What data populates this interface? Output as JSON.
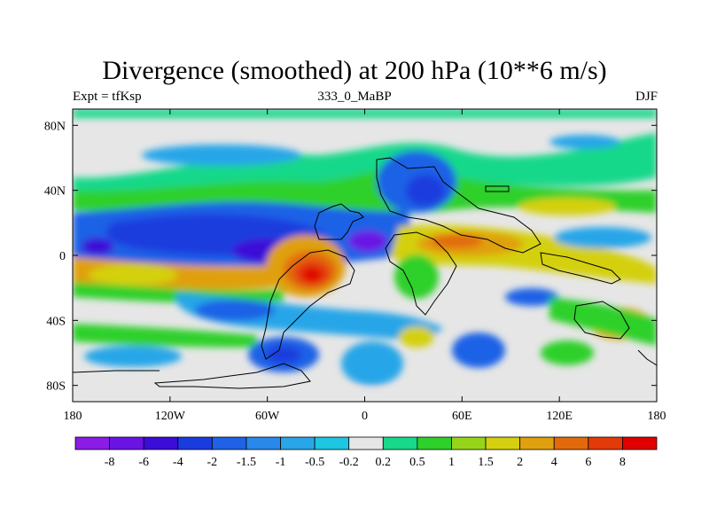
{
  "title": "Divergence (smoothed) at 200 hPa (10**6 m/s)",
  "subtitle_left": "Expt = tfKsp",
  "subtitle_center": "333_0_MaBP",
  "subtitle_right": "DJF",
  "chart_data": {
    "type": "heatmap",
    "variable": "Divergence (smoothed) at 200 hPa",
    "units": "10**6 m/s",
    "season": "DJF",
    "experiment": "tfKsp",
    "period": "333_0_MaBP",
    "x_range": [
      -180,
      180
    ],
    "y_range": [
      -90,
      90
    ],
    "x_ticks": [
      {
        "value": -180,
        "label": "180"
      },
      {
        "value": -120,
        "label": "120W"
      },
      {
        "value": -60,
        "label": "60W"
      },
      {
        "value": 0,
        "label": "0"
      },
      {
        "value": 60,
        "label": "60E"
      },
      {
        "value": 120,
        "label": "120E"
      },
      {
        "value": 180,
        "label": "180"
      }
    ],
    "y_ticks": [
      {
        "value": 80,
        "label": "80N"
      },
      {
        "value": 40,
        "label": "40N"
      },
      {
        "value": 0,
        "label": "0"
      },
      {
        "value": -40,
        "label": "40S"
      },
      {
        "value": -80,
        "label": "80S"
      }
    ],
    "colorbar_labels": [
      "-8",
      "-6",
      "-4",
      "-2",
      "-1.5",
      "-1",
      "-0.5",
      "-0.2",
      "0.2",
      "0.5",
      "1",
      "1.5",
      "2",
      "4",
      "6",
      "8"
    ],
    "colorbar_colors": [
      "#8a1ce6",
      "#6a14e4",
      "#3c0cd8",
      "#1a3cde",
      "#1f62e6",
      "#2a88ea",
      "#28a6e8",
      "#1ec6e2",
      "#e6e6e6",
      "#18d88a",
      "#2ed02a",
      "#96d41a",
      "#d4d010",
      "#e0a010",
      "#e26a0c",
      "#e33a0a",
      "#e00000"
    ]
  }
}
